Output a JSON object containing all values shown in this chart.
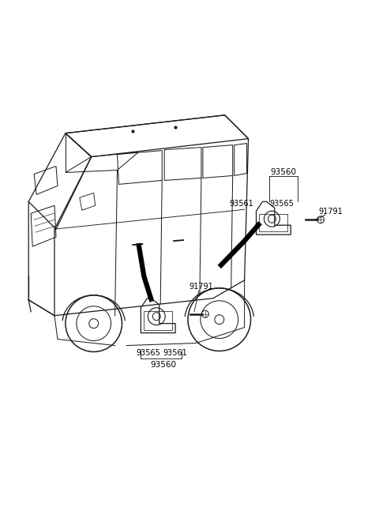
{
  "background_color": "#ffffff",
  "fig_width": 4.8,
  "fig_height": 6.56,
  "dpi": 100,
  "labels": {
    "upper_93560": "93560",
    "upper_93561": "93561",
    "upper_93565": "93565",
    "upper_91791": "91791",
    "lower_91791": "91791",
    "lower_93565": "93565",
    "lower_93561": "93561",
    "lower_93560": "93560"
  },
  "label_fontsize": 7.0,
  "line_color": "#1a1a1a",
  "line_width": 0.9,
  "gray_fill": "#e8e8e8"
}
